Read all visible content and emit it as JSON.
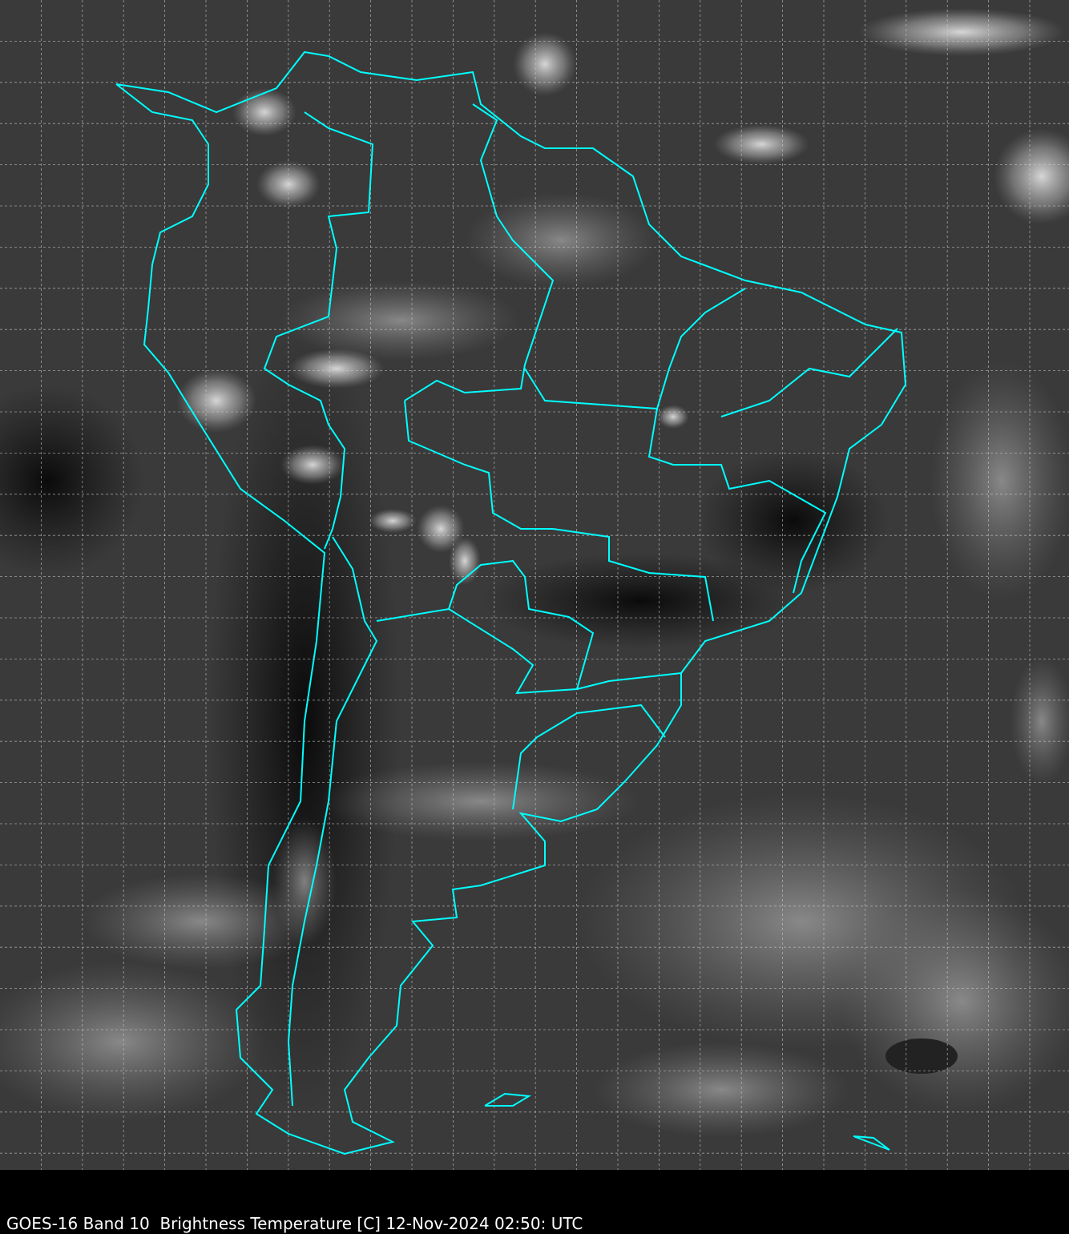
{
  "caption": "GOES-16 Band 10  Brightness Temperature [C] 12-Nov-2024 02:50: UTC",
  "map": {
    "region": "South America",
    "imagery": "infrared brightness temperature, grayscale",
    "boundary_color": "#00ffff",
    "grid_color": "#cccccc",
    "grid": "dashed lat/lon graticule",
    "background_color": "#000000"
  }
}
